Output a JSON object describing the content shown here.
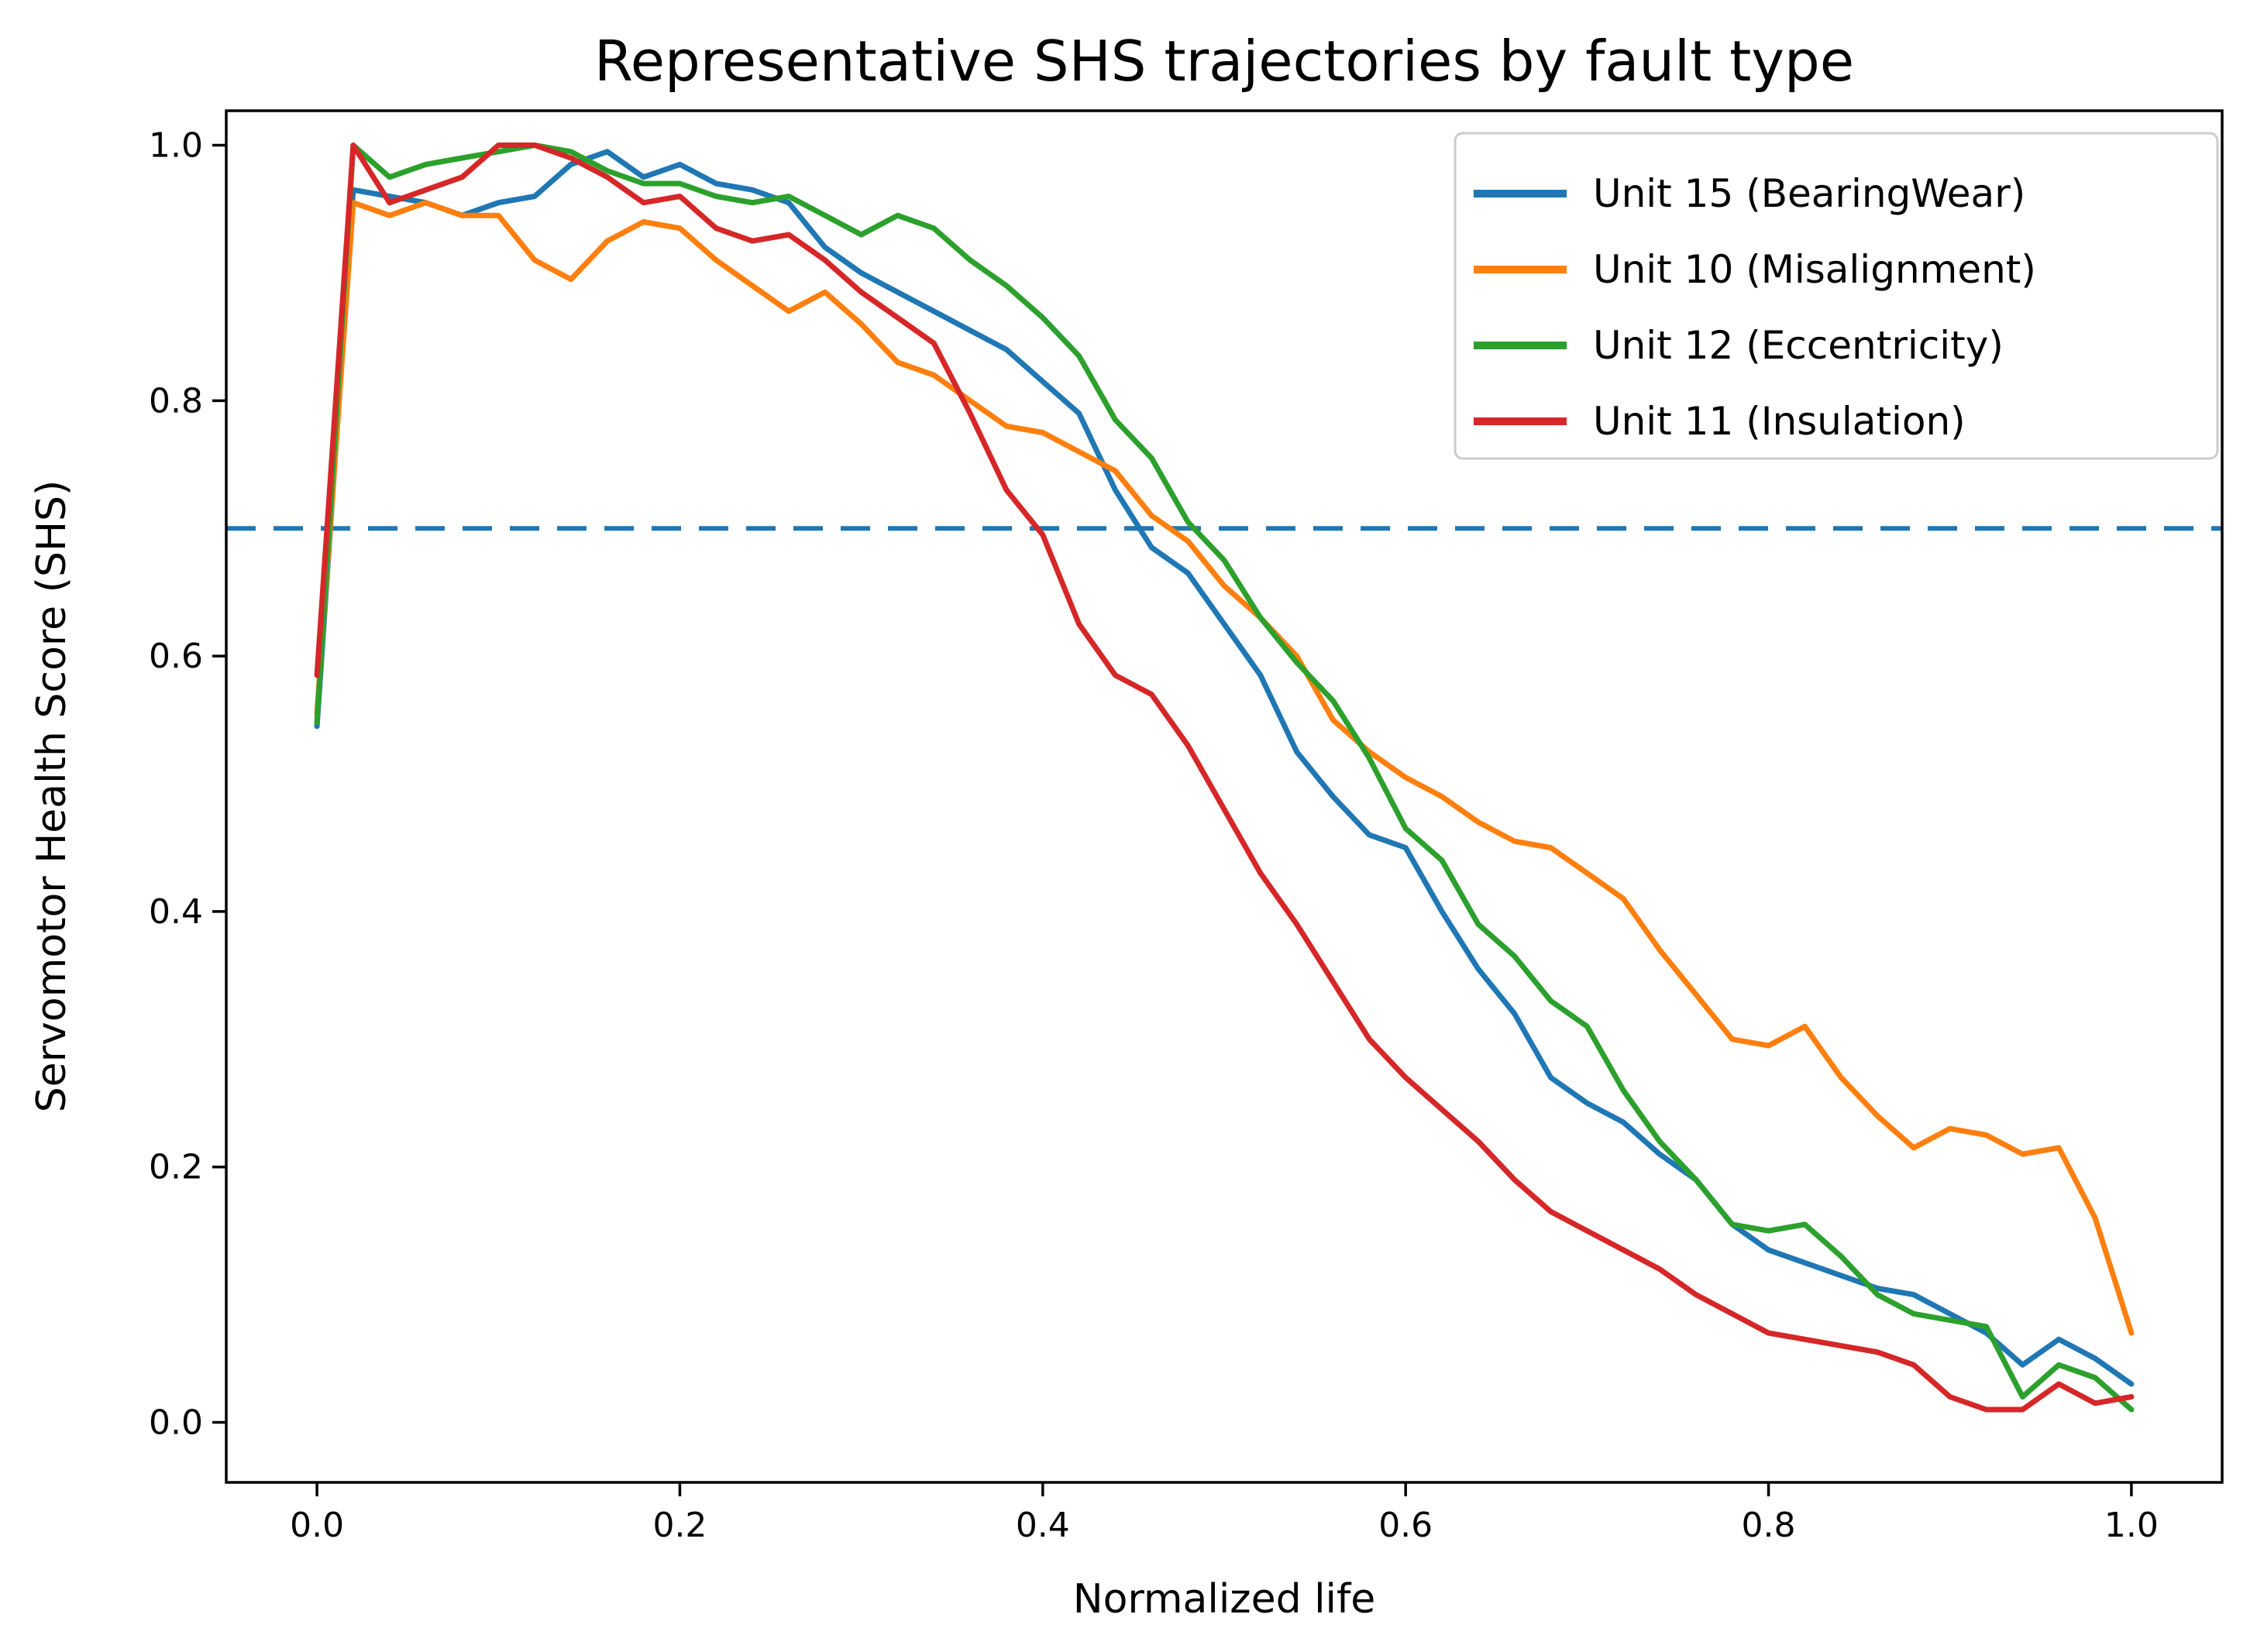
{
  "figure": {
    "background": "#ffffff",
    "spine_color": "#000000",
    "text_color": "#000000"
  },
  "chart_data": {
    "type": "line",
    "title": "Representative SHS trajectories by fault type",
    "xlabel": "Normalized life",
    "ylabel": "Servomotor Health Score (SHS)",
    "xlim": [
      -0.05,
      1.05
    ],
    "ylim": [
      -0.047,
      1.027
    ],
    "grid": false,
    "legend_position": "upper right",
    "xticks": {
      "values": [
        0.0,
        0.2,
        0.4,
        0.6,
        0.8,
        1.0
      ],
      "labels": [
        "0.0",
        "0.2",
        "0.4",
        "0.6",
        "0.8",
        "1.0"
      ]
    },
    "yticks": {
      "values": [
        0.0,
        0.2,
        0.4,
        0.6,
        0.8,
        1.0
      ],
      "labels": [
        "0.0",
        "0.2",
        "0.4",
        "0.6",
        "0.8",
        "1.0"
      ]
    },
    "threshold_line": {
      "y": 0.7,
      "style": "dashed",
      "color": "#1f77b4"
    },
    "x": [
      0.0,
      0.02,
      0.04,
      0.06,
      0.08,
      0.1,
      0.12,
      0.14,
      0.16,
      0.18,
      0.2,
      0.22,
      0.24,
      0.26,
      0.28,
      0.3,
      0.32,
      0.34,
      0.36,
      0.38,
      0.4,
      0.42,
      0.44,
      0.46,
      0.48,
      0.5,
      0.52,
      0.54,
      0.56,
      0.58,
      0.6,
      0.62,
      0.64,
      0.66,
      0.68,
      0.7,
      0.72,
      0.74,
      0.76,
      0.78,
      0.8,
      0.82,
      0.84,
      0.86,
      0.88,
      0.9,
      0.92,
      0.94,
      0.96,
      0.98,
      1.0
    ],
    "series": [
      {
        "name": "Unit 15 (BearingWear)",
        "color": "#1f77b4",
        "values": [
          0.545,
          0.965,
          0.96,
          0.955,
          0.945,
          0.955,
          0.96,
          0.985,
          0.995,
          0.975,
          0.985,
          0.97,
          0.965,
          0.955,
          0.92,
          0.9,
          0.885,
          0.87,
          0.855,
          0.84,
          0.815,
          0.79,
          0.73,
          0.685,
          0.665,
          0.625,
          0.585,
          0.525,
          0.49,
          0.46,
          0.45,
          0.4,
          0.355,
          0.32,
          0.27,
          0.25,
          0.235,
          0.21,
          0.19,
          0.155,
          0.135,
          0.125,
          0.115,
          0.105,
          0.1,
          0.085,
          0.07,
          0.045,
          0.065,
          0.05,
          0.03
        ]
      },
      {
        "name": "Unit 10 (Misalignment)",
        "color": "#ff7f0e",
        "values": [
          0.555,
          0.955,
          0.945,
          0.955,
          0.945,
          0.945,
          0.91,
          0.895,
          0.925,
          0.94,
          0.935,
          0.91,
          0.89,
          0.87,
          0.885,
          0.86,
          0.83,
          0.82,
          0.8,
          0.78,
          0.775,
          0.76,
          0.745,
          0.71,
          0.69,
          0.655,
          0.63,
          0.6,
          0.55,
          0.525,
          0.505,
          0.49,
          0.47,
          0.455,
          0.45,
          0.43,
          0.41,
          0.37,
          0.335,
          0.3,
          0.295,
          0.31,
          0.27,
          0.24,
          0.215,
          0.23,
          0.225,
          0.21,
          0.215,
          0.16,
          0.07
        ]
      },
      {
        "name": "Unit 12 (Eccentricity)",
        "color": "#2ca02c",
        "values": [
          0.548,
          1.0,
          0.975,
          0.985,
          0.99,
          0.995,
          1.0,
          0.995,
          0.98,
          0.97,
          0.97,
          0.96,
          0.955,
          0.96,
          0.945,
          0.93,
          0.945,
          0.935,
          0.91,
          0.89,
          0.865,
          0.835,
          0.785,
          0.755,
          0.705,
          0.675,
          0.63,
          0.595,
          0.565,
          0.52,
          0.465,
          0.44,
          0.39,
          0.365,
          0.33,
          0.31,
          0.26,
          0.22,
          0.19,
          0.155,
          0.15,
          0.155,
          0.13,
          0.1,
          0.085,
          0.08,
          0.075,
          0.02,
          0.045,
          0.035,
          0.01
        ]
      },
      {
        "name": "Unit 11 (Insulation)",
        "color": "#d62728",
        "values": [
          0.585,
          1.0,
          0.955,
          0.965,
          0.975,
          1.0,
          1.0,
          0.99,
          0.975,
          0.955,
          0.96,
          0.935,
          0.925,
          0.93,
          0.91,
          0.885,
          0.865,
          0.845,
          0.79,
          0.73,
          0.695,
          0.625,
          0.585,
          0.57,
          0.53,
          0.48,
          0.43,
          0.39,
          0.345,
          0.3,
          0.27,
          0.245,
          0.22,
          0.19,
          0.165,
          0.15,
          0.135,
          0.12,
          0.1,
          0.085,
          0.07,
          0.065,
          0.06,
          0.055,
          0.045,
          0.02,
          0.01,
          0.01,
          0.03,
          0.015,
          0.02
        ]
      }
    ]
  }
}
